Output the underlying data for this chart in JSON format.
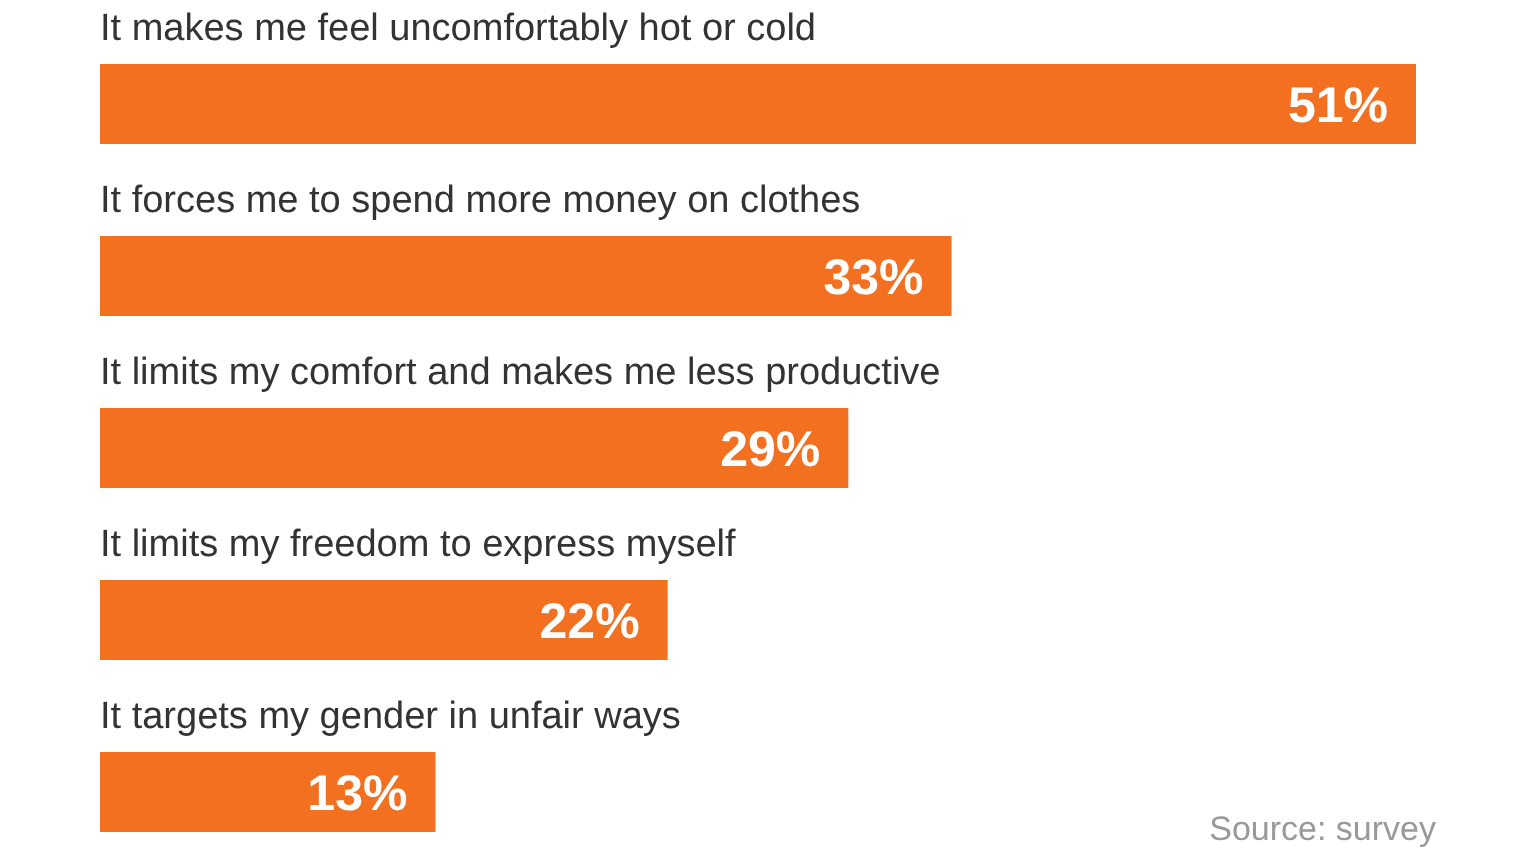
{
  "chart_data": {
    "type": "bar",
    "orientation": "horizontal",
    "categories": [
      "It makes me feel uncomfortably hot or cold",
      "It forces me to spend more money on clothes",
      "It limits my comfort and makes me less productive",
      "It limits my freedom to express myself",
      "It targets my gender in unfair ways"
    ],
    "values": [
      51,
      33,
      29,
      22,
      13
    ],
    "value_labels": [
      "51%",
      "33%",
      "29%",
      "22%",
      "13%"
    ],
    "color": "#f37021",
    "annotations": [
      "Source: survey"
    ]
  }
}
